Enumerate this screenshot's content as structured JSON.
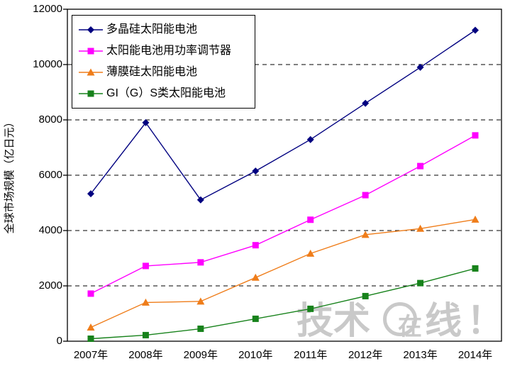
{
  "chart_data": {
    "type": "line",
    "title": "",
    "xlabel": "",
    "ylabel": "全球市场规模（亿日元）",
    "categories": [
      "2007年",
      "2008年",
      "2009年",
      "2010年",
      "2011年",
      "2012年",
      "2013年",
      "2014年"
    ],
    "ylim": [
      0,
      12000
    ],
    "yticks": [
      0,
      2000,
      4000,
      6000,
      8000,
      10000,
      12000
    ],
    "grid": "horizontal-dashed",
    "legend_position": "top-left-inside",
    "axis_color": "#000000",
    "series": [
      {
        "name": "多晶硅太阳能电池",
        "color": "#000080",
        "marker": "diamond",
        "values": [
          5330,
          7900,
          5110,
          6150,
          7290,
          8600,
          9900,
          11240
        ]
      },
      {
        "name": "太阳能电池用功率调节器",
        "color": "#ff00ff",
        "marker": "square",
        "values": [
          1720,
          2720,
          2850,
          3470,
          4390,
          5280,
          6330,
          7440
        ]
      },
      {
        "name": "薄膜硅太阳能电池",
        "color": "#ef7d1a",
        "marker": "triangle",
        "values": [
          500,
          1400,
          1440,
          2300,
          3170,
          3850,
          4070,
          4400
        ]
      },
      {
        "name": "GI（G）S类太阳能电池",
        "color": "#17821b",
        "marker": "square",
        "values": [
          90,
          220,
          450,
          810,
          1170,
          1630,
          2100,
          2630
        ]
      }
    ]
  },
  "watermark": {
    "part1": "技术",
    "part2": "在",
    "part3": "线",
    "part4": "！",
    "color": "#c9c9c9"
  }
}
